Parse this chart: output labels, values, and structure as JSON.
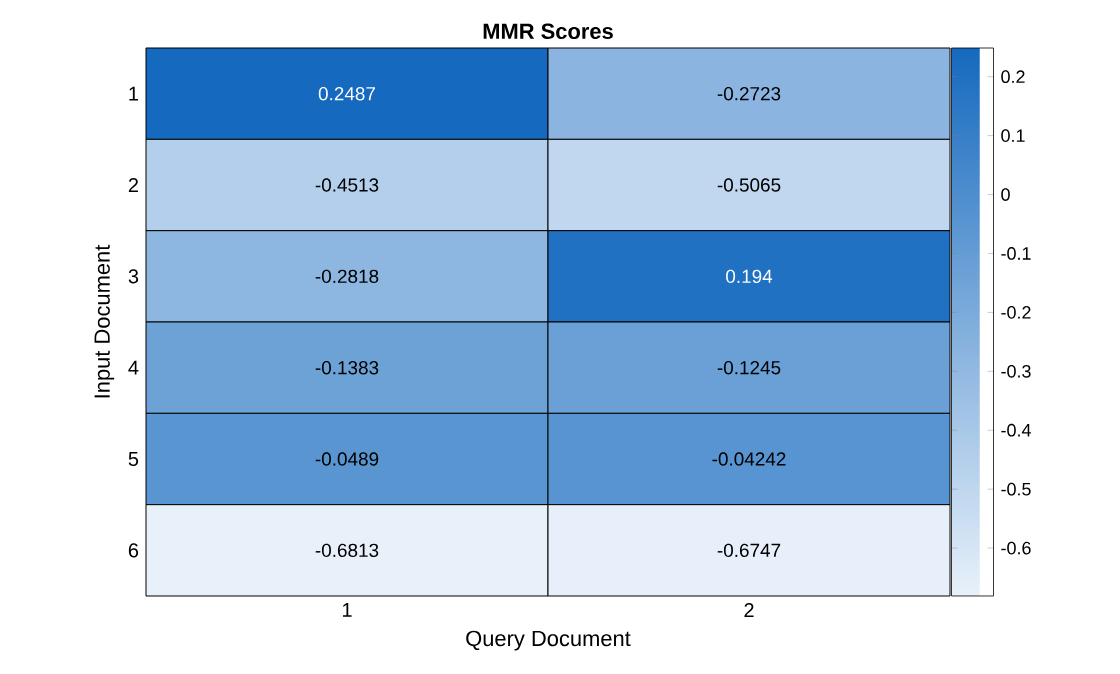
{
  "chart_data": {
    "type": "heatmap",
    "title": "MMR Scores",
    "xlabel": "Query Document",
    "ylabel": "Input Document",
    "categories": [
      "1",
      "2"
    ],
    "y_categories": [
      "1",
      "2",
      "3",
      "4",
      "5",
      "6"
    ],
    "cells": [
      [
        0.2487,
        -0.2723
      ],
      [
        -0.4513,
        -0.5065
      ],
      [
        -0.2818,
        0.194
      ],
      [
        -0.1383,
        -0.1245
      ],
      [
        -0.0489,
        -0.04242
      ],
      [
        -0.6813,
        -0.6747
      ]
    ],
    "data_labels": true,
    "clim": [
      -0.6813,
      0.2487
    ],
    "cticks": [
      -0.6,
      -0.5,
      -0.4,
      -0.3,
      -0.2,
      -0.1,
      0,
      0.1,
      0.2
    ]
  }
}
